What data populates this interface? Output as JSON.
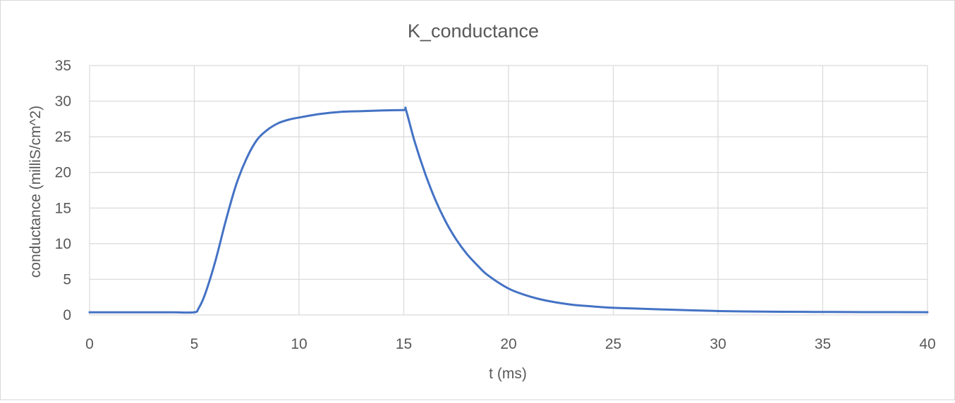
{
  "chart_data": {
    "type": "line",
    "title": "K_conductance",
    "xlabel": "t (ms)",
    "ylabel": "conductance (milliS/cm^2)",
    "xlim": [
      0,
      40
    ],
    "ylim": [
      0,
      35
    ],
    "xticks": [
      0,
      5,
      10,
      15,
      20,
      25,
      30,
      35,
      40
    ],
    "yticks": [
      0,
      5,
      10,
      15,
      20,
      25,
      30,
      35
    ],
    "grid": true,
    "legend": "none",
    "series": [
      {
        "color": "#4472C4",
        "x": [
          0,
          1,
          2,
          3,
          4,
          5,
          5.2,
          5.5,
          6,
          6.5,
          7,
          7.5,
          8,
          8.5,
          9,
          9.5,
          10,
          11,
          12,
          13,
          14,
          15,
          15.1,
          15.5,
          16,
          16.5,
          17,
          17.5,
          18,
          18.5,
          19,
          20,
          21,
          22,
          23,
          24,
          25,
          27,
          30,
          33,
          35,
          37,
          40
        ],
        "y": [
          0.37,
          0.37,
          0.37,
          0.37,
          0.37,
          0.37,
          0.9,
          2.8,
          7.5,
          13.2,
          18.3,
          22.0,
          24.6,
          26.0,
          26.9,
          27.4,
          27.7,
          28.2,
          28.5,
          28.6,
          28.7,
          28.75,
          28.8,
          24.5,
          20.0,
          16.2,
          13.1,
          10.6,
          8.6,
          7.0,
          5.6,
          3.7,
          2.6,
          1.9,
          1.45,
          1.2,
          1.0,
          0.8,
          0.55,
          0.45,
          0.42,
          0.4,
          0.38
        ]
      }
    ]
  }
}
